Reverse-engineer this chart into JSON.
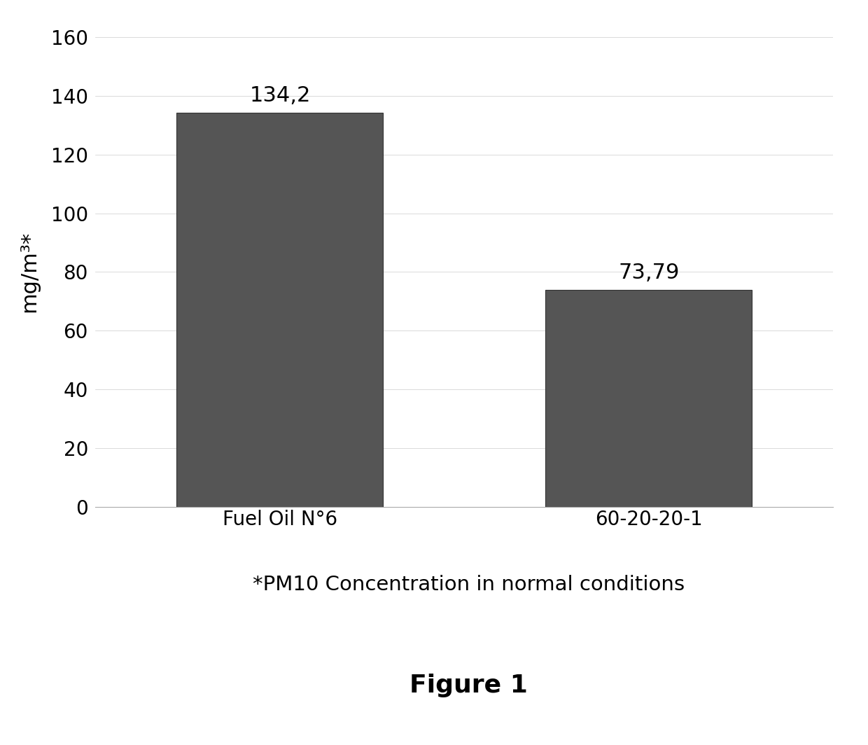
{
  "categories": [
    "Fuel Oil N°6",
    "60-20-20-1"
  ],
  "values": [
    134.2,
    73.79
  ],
  "bar_color": "#555555",
  "bar_edgecolor": "#333333",
  "ylim": [
    0,
    160
  ],
  "yticks": [
    0,
    20,
    40,
    60,
    80,
    100,
    120,
    140,
    160
  ],
  "ylabel": "mg/m³*",
  "value_labels": [
    "134,2",
    "73,79"
  ],
  "subtitle": "*PM10 Concentration in normal conditions",
  "figure_label": "Figure 1",
  "bar_width": 0.28,
  "background_color": "#ffffff",
  "ylabel_fontsize": 22,
  "tick_fontsize": 20,
  "label_fontsize": 20,
  "value_fontsize": 22,
  "subtitle_fontsize": 21,
  "figure_label_fontsize": 26,
  "xlim": [
    -0.5,
    1.5
  ]
}
